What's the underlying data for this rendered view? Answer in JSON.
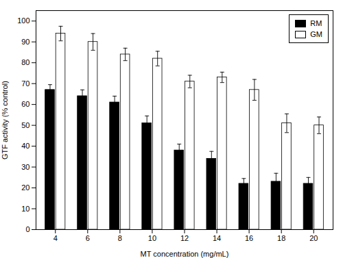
{
  "chart_data": {
    "type": "bar",
    "xlabel": "MT concentration (mg/mL)",
    "ylabel": "GTF activity (% control)",
    "categories": [
      "4",
      "6",
      "8",
      "10",
      "12",
      "14",
      "16",
      "18",
      "20"
    ],
    "series": [
      {
        "name": "RM",
        "color": "#000000",
        "values": [
          67,
          64,
          61,
          51,
          38,
          34,
          22,
          23,
          22
        ],
        "errors": [
          2.5,
          3.0,
          3.0,
          3.5,
          3.0,
          3.5,
          2.5,
          4.0,
          3.0
        ]
      },
      {
        "name": "GM",
        "color": "#ffffff",
        "values": [
          94,
          90,
          84,
          82,
          71,
          73,
          67,
          51,
          50
        ],
        "errors": [
          3.5,
          4.0,
          3.0,
          3.5,
          3.0,
          2.5,
          5.0,
          4.5,
          4.0
        ]
      }
    ],
    "ylim": [
      0,
      105
    ],
    "yticks": [
      0,
      10,
      20,
      30,
      40,
      50,
      60,
      70,
      80,
      90,
      100
    ],
    "legend": "upper-right",
    "grid": false
  }
}
